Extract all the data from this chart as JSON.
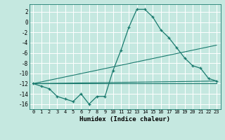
{
  "xlabel": "Humidex (Indice chaleur)",
  "bg_color": "#c5e8e0",
  "grid_color": "#ffffff",
  "line_color": "#1a7a6e",
  "xlim": [
    -0.5,
    23.5
  ],
  "ylim": [
    -17,
    3.5
  ],
  "yticks": [
    2,
    0,
    -2,
    -4,
    -6,
    -8,
    -10,
    -12,
    -14,
    -16
  ],
  "xticks": [
    0,
    1,
    2,
    3,
    4,
    5,
    6,
    7,
    8,
    9,
    10,
    11,
    12,
    13,
    14,
    15,
    16,
    17,
    18,
    19,
    20,
    21,
    22,
    23
  ],
  "series1_x": [
    0,
    1,
    2,
    3,
    4,
    5,
    6,
    7,
    8,
    9,
    10,
    11,
    12,
    13,
    14,
    15,
    16,
    17,
    18,
    19,
    20,
    21,
    22,
    23
  ],
  "series1_y": [
    -12,
    -12.5,
    -13,
    -14.5,
    -15,
    -15.5,
    -14,
    -16,
    -14.5,
    -14.5,
    -9.5,
    -5.5,
    -1,
    2.5,
    2.5,
    1,
    -1.5,
    -3,
    -5,
    -7,
    -8.5,
    -9,
    -11,
    -11.5
  ],
  "line1_x": [
    0,
    23
  ],
  "line1_y": [
    -12,
    -12
  ],
  "line2_x": [
    0,
    23
  ],
  "line2_y": [
    -12,
    -4.5
  ],
  "line3_x": [
    0,
    23
  ],
  "line3_y": [
    -12,
    -11.5
  ]
}
